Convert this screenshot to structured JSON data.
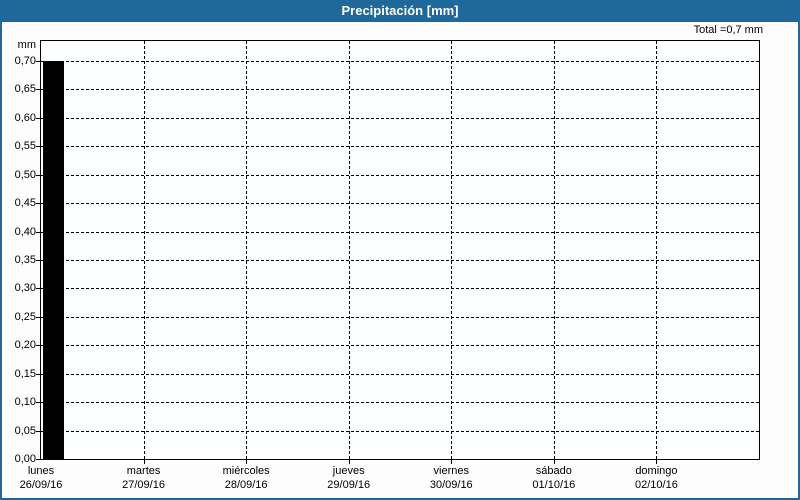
{
  "window": {
    "title": "Precipitación [mm]"
  },
  "total_label": "Total =0,7 mm",
  "unit_label": "mm",
  "colors": {
    "titlebar": "#1e689c",
    "frame_border": "#1e689c",
    "bar": "#000000",
    "grid": "#000000",
    "background": "#fcfdfc",
    "title_text": "#ffffff",
    "label_text": "#000000"
  },
  "chart_data": {
    "type": "bar",
    "title": "Precipitación [mm]",
    "ylabel": "mm",
    "xlabel": "",
    "ylim": [
      0,
      0.7
    ],
    "ytick_step": 0.05,
    "ytick_labels": [
      "0,00",
      "0,05",
      "0,10",
      "0,15",
      "0,20",
      "0,25",
      "0,30",
      "0,35",
      "0,40",
      "0,45",
      "0,50",
      "0,55",
      "0,60",
      "0,65",
      "0,70"
    ],
    "grid": "dashed",
    "legend": "none",
    "categories": [
      {
        "day": "lunes",
        "date": "26/09/16"
      },
      {
        "day": "martes",
        "date": "27/09/16"
      },
      {
        "day": "miércoles",
        "date": "28/09/16"
      },
      {
        "day": "jueves",
        "date": "29/09/16"
      },
      {
        "day": "viernes",
        "date": "30/09/16"
      },
      {
        "day": "sábado",
        "date": "01/10/16"
      },
      {
        "day": "domingo",
        "date": "02/10/16"
      }
    ],
    "series": [
      {
        "name": "Precipitación",
        "values": [
          0.7,
          0,
          0,
          0,
          0,
          0,
          0
        ]
      }
    ],
    "total_value": "0,7 mm"
  }
}
